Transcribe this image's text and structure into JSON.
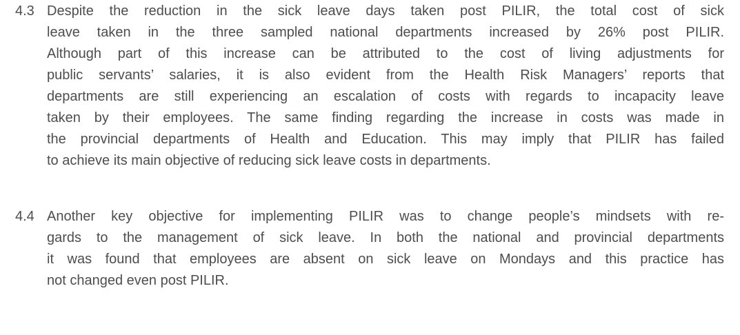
{
  "paragraphs": [
    {
      "number": "4.3",
      "lines": [
        "Despite the reduction in the sick leave days taken post PILIR, the total cost of sick",
        "leave taken in the three sampled national departments increased by 26% post PILIR.",
        "Although part of this increase can be attributed to the cost of living adjustments for",
        "public servants’ salaries, it is also evident from the Health Risk Managers’ reports that",
        "departments are still experiencing an escalation of costs with regards to incapacity leave",
        "taken by their employees. The same finding regarding the increase in costs was made in",
        "the provincial departments of Health and Education. This may imply that PILIR has failed",
        "to achieve its main objective of reducing sick leave costs in departments."
      ]
    },
    {
      "number": "4.4",
      "lines": [
        "Another key objective for implementing PILIR was to change people’s mindsets with re-",
        "gards to the management of sick leave. In both the national and provincial departments",
        "it was found that employees are absent on sick leave on Mondays and this practice has",
        "not changed even post PILIR."
      ]
    }
  ]
}
